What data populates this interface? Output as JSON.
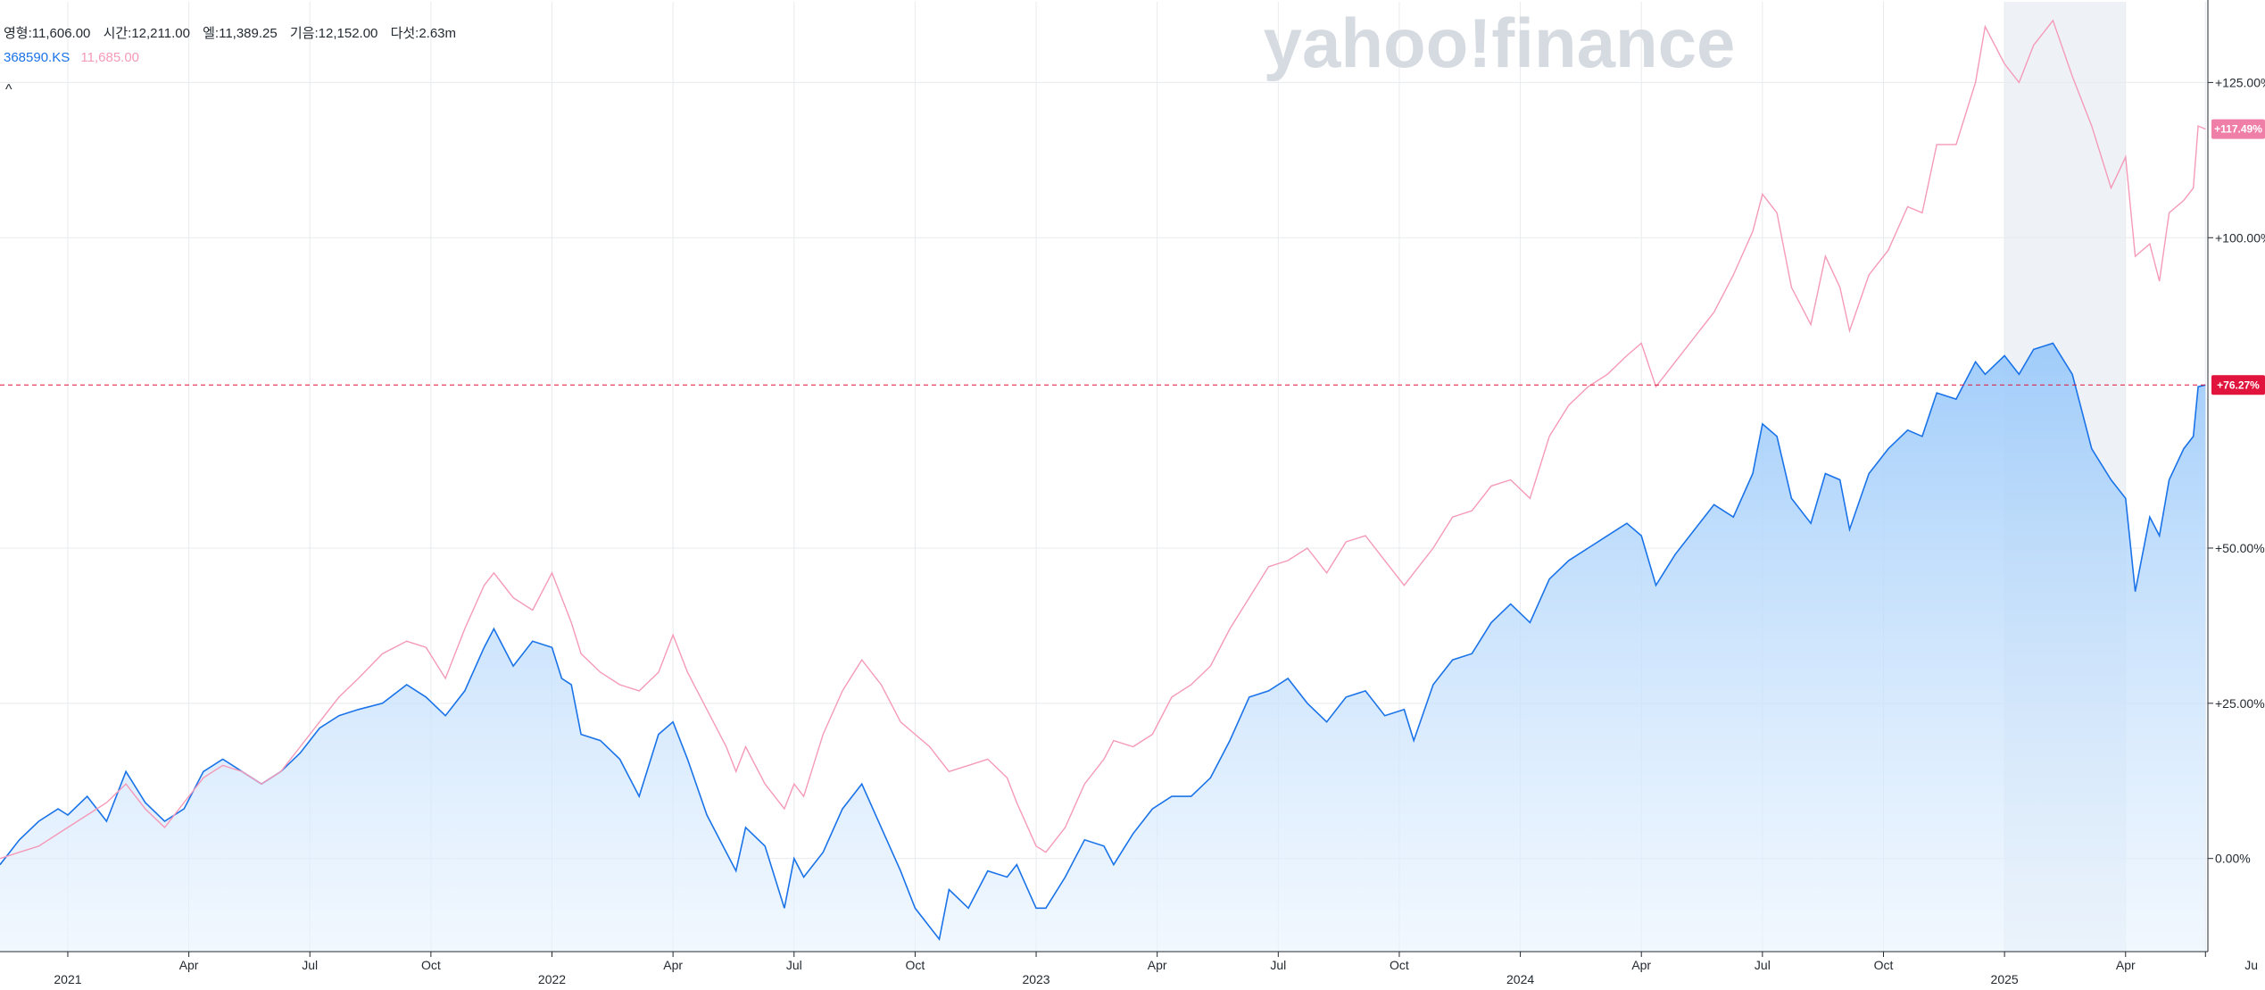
{
  "header": {
    "ohlc": {
      "open": "영형:11,606.00",
      "high": "시간:12,211.00",
      "low": "엘:11,389.25",
      "close": "기음:12,152.00",
      "volume": "다섯:2.63m"
    },
    "legend": {
      "primary_symbol": "368590.KS",
      "compare_value": "11,685.00"
    },
    "collapse_label": "^"
  },
  "watermark": "yahoo!finance",
  "colors": {
    "primary_line": "#1a73e8",
    "primary_fill": "#a8d1fb",
    "compare_line": "#f59ab8",
    "compare_badge": "#ef7fa6",
    "current_line": "#e0143c",
    "highlight_band": "#eef2f6",
    "grid": "#e8ebee"
  },
  "chart_data": {
    "type": "area",
    "x_labels": [
      "2021",
      "Apr",
      "Jul",
      "Oct",
      "2022",
      "Apr",
      "Jul",
      "Oct",
      "2023",
      "Apr",
      "Jul",
      "Oct",
      "2024",
      "Apr",
      "Jul",
      "Oct",
      "2025",
      "Apr",
      "Ju"
    ],
    "x_label_dates": [
      2021.0,
      2021.25,
      2021.5,
      2021.75,
      2022.0,
      2022.25,
      2022.5,
      2022.75,
      2023.0,
      2023.25,
      2023.5,
      2023.75,
      2024.0,
      2024.25,
      2024.5,
      2024.75,
      2025.0,
      2025.25,
      2025.415
    ],
    "y_ticks": [
      0,
      25,
      50,
      100,
      125
    ],
    "y_tick_labels": [
      "0.00%",
      "+25.00%",
      "+50.00%",
      "+100.00%",
      "+125.00%"
    ],
    "ylim": [
      -15,
      138
    ],
    "xlim": [
      2020.86,
      2025.42
    ],
    "highlight_range": [
      2025.0,
      2025.25
    ],
    "current_value": 76.27,
    "current_label": "+76.27%",
    "compare_last": 117.49,
    "compare_label": "+117.49%",
    "grid": true,
    "series": [
      {
        "name": "368590.KS",
        "style": "area",
        "points": [
          [
            2020.86,
            -1
          ],
          [
            2020.9,
            3
          ],
          [
            2020.94,
            6
          ],
          [
            2020.98,
            8
          ],
          [
            2021.0,
            7
          ],
          [
            2021.04,
            10
          ],
          [
            2021.08,
            6
          ],
          [
            2021.12,
            14
          ],
          [
            2021.16,
            9
          ],
          [
            2021.2,
            6
          ],
          [
            2021.24,
            8
          ],
          [
            2021.28,
            14
          ],
          [
            2021.32,
            16
          ],
          [
            2021.36,
            14
          ],
          [
            2021.4,
            12
          ],
          [
            2021.44,
            14
          ],
          [
            2021.48,
            17
          ],
          [
            2021.52,
            21
          ],
          [
            2021.56,
            23
          ],
          [
            2021.6,
            24
          ],
          [
            2021.65,
            25
          ],
          [
            2021.7,
            28
          ],
          [
            2021.74,
            26
          ],
          [
            2021.78,
            23
          ],
          [
            2021.82,
            27
          ],
          [
            2021.86,
            34
          ],
          [
            2021.88,
            37
          ],
          [
            2021.92,
            31
          ],
          [
            2021.96,
            35
          ],
          [
            2022.0,
            34
          ],
          [
            2022.02,
            29
          ],
          [
            2022.04,
            28
          ],
          [
            2022.06,
            20
          ],
          [
            2022.1,
            19
          ],
          [
            2022.14,
            16
          ],
          [
            2022.18,
            10
          ],
          [
            2022.22,
            20
          ],
          [
            2022.25,
            22
          ],
          [
            2022.28,
            16
          ],
          [
            2022.32,
            7
          ],
          [
            2022.36,
            1
          ],
          [
            2022.38,
            -2
          ],
          [
            2022.4,
            5
          ],
          [
            2022.44,
            2
          ],
          [
            2022.48,
            -8
          ],
          [
            2022.5,
            0
          ],
          [
            2022.52,
            -3
          ],
          [
            2022.56,
            1
          ],
          [
            2022.6,
            8
          ],
          [
            2022.64,
            12
          ],
          [
            2022.68,
            5
          ],
          [
            2022.72,
            -2
          ],
          [
            2022.75,
            -8
          ],
          [
            2022.78,
            -11
          ],
          [
            2022.8,
            -13
          ],
          [
            2022.82,
            -5
          ],
          [
            2022.86,
            -8
          ],
          [
            2022.9,
            -2
          ],
          [
            2022.94,
            -3
          ],
          [
            2022.96,
            -1
          ],
          [
            2023.0,
            -8
          ],
          [
            2023.02,
            -8
          ],
          [
            2023.06,
            -3
          ],
          [
            2023.1,
            3
          ],
          [
            2023.14,
            2
          ],
          [
            2023.16,
            -1
          ],
          [
            2023.2,
            4
          ],
          [
            2023.24,
            8
          ],
          [
            2023.28,
            10
          ],
          [
            2023.32,
            10
          ],
          [
            2023.36,
            13
          ],
          [
            2023.4,
            19
          ],
          [
            2023.44,
            26
          ],
          [
            2023.48,
            27
          ],
          [
            2023.52,
            29
          ],
          [
            2023.56,
            25
          ],
          [
            2023.6,
            22
          ],
          [
            2023.64,
            26
          ],
          [
            2023.68,
            27
          ],
          [
            2023.72,
            23
          ],
          [
            2023.76,
            24
          ],
          [
            2023.78,
            19
          ],
          [
            2023.82,
            28
          ],
          [
            2023.86,
            32
          ],
          [
            2023.9,
            33
          ],
          [
            2023.94,
            38
          ],
          [
            2023.98,
            41
          ],
          [
            2024.02,
            38
          ],
          [
            2024.06,
            45
          ],
          [
            2024.1,
            48
          ],
          [
            2024.14,
            50
          ],
          [
            2024.18,
            52
          ],
          [
            2024.22,
            54
          ],
          [
            2024.25,
            52
          ],
          [
            2024.28,
            44
          ],
          [
            2024.32,
            49
          ],
          [
            2024.36,
            53
          ],
          [
            2024.4,
            57
          ],
          [
            2024.44,
            55
          ],
          [
            2024.48,
            62
          ],
          [
            2024.5,
            70
          ],
          [
            2024.53,
            68
          ],
          [
            2024.56,
            58
          ],
          [
            2024.6,
            54
          ],
          [
            2024.63,
            62
          ],
          [
            2024.66,
            61
          ],
          [
            2024.68,
            53
          ],
          [
            2024.72,
            62
          ],
          [
            2024.76,
            66
          ],
          [
            2024.8,
            69
          ],
          [
            2024.83,
            68
          ],
          [
            2024.86,
            75
          ],
          [
            2024.9,
            74
          ],
          [
            2024.94,
            80
          ],
          [
            2024.96,
            78
          ],
          [
            2025.0,
            81
          ],
          [
            2025.03,
            78
          ],
          [
            2025.06,
            82
          ],
          [
            2025.1,
            83
          ],
          [
            2025.14,
            78
          ],
          [
            2025.18,
            66
          ],
          [
            2025.22,
            61
          ],
          [
            2025.25,
            58
          ],
          [
            2025.27,
            43
          ],
          [
            2025.3,
            55
          ],
          [
            2025.32,
            52
          ],
          [
            2025.34,
            61
          ],
          [
            2025.37,
            66
          ],
          [
            2025.39,
            68
          ],
          [
            2025.4,
            76
          ],
          [
            2025.415,
            76.27
          ]
        ]
      },
      {
        "name": "11,685.00",
        "style": "line",
        "points": [
          [
            2020.86,
            0
          ],
          [
            2020.9,
            1
          ],
          [
            2020.94,
            2
          ],
          [
            2020.98,
            4
          ],
          [
            2021.0,
            5
          ],
          [
            2021.04,
            7
          ],
          [
            2021.08,
            9
          ],
          [
            2021.12,
            12
          ],
          [
            2021.16,
            8
          ],
          [
            2021.2,
            5
          ],
          [
            2021.24,
            9
          ],
          [
            2021.28,
            13
          ],
          [
            2021.32,
            15
          ],
          [
            2021.36,
            14
          ],
          [
            2021.4,
            12
          ],
          [
            2021.44,
            14
          ],
          [
            2021.48,
            18
          ],
          [
            2021.52,
            22
          ],
          [
            2021.56,
            26
          ],
          [
            2021.6,
            29
          ],
          [
            2021.65,
            33
          ],
          [
            2021.7,
            35
          ],
          [
            2021.74,
            34
          ],
          [
            2021.78,
            29
          ],
          [
            2021.82,
            37
          ],
          [
            2021.86,
            44
          ],
          [
            2021.88,
            46
          ],
          [
            2021.92,
            42
          ],
          [
            2021.96,
            40
          ],
          [
            2022.0,
            46
          ],
          [
            2022.02,
            42
          ],
          [
            2022.04,
            38
          ],
          [
            2022.06,
            33
          ],
          [
            2022.1,
            30
          ],
          [
            2022.14,
            28
          ],
          [
            2022.18,
            27
          ],
          [
            2022.22,
            30
          ],
          [
            2022.25,
            36
          ],
          [
            2022.28,
            30
          ],
          [
            2022.32,
            24
          ],
          [
            2022.36,
            18
          ],
          [
            2022.38,
            14
          ],
          [
            2022.4,
            18
          ],
          [
            2022.44,
            12
          ],
          [
            2022.48,
            8
          ],
          [
            2022.5,
            12
          ],
          [
            2022.52,
            10
          ],
          [
            2022.56,
            20
          ],
          [
            2022.6,
            27
          ],
          [
            2022.64,
            32
          ],
          [
            2022.68,
            28
          ],
          [
            2022.72,
            22
          ],
          [
            2022.75,
            20
          ],
          [
            2022.78,
            18
          ],
          [
            2022.8,
            16
          ],
          [
            2022.82,
            14
          ],
          [
            2022.86,
            15
          ],
          [
            2022.9,
            16
          ],
          [
            2022.94,
            13
          ],
          [
            2022.96,
            9
          ],
          [
            2023.0,
            2
          ],
          [
            2023.02,
            1
          ],
          [
            2023.06,
            5
          ],
          [
            2023.1,
            12
          ],
          [
            2023.14,
            16
          ],
          [
            2023.16,
            19
          ],
          [
            2023.2,
            18
          ],
          [
            2023.24,
            20
          ],
          [
            2023.28,
            26
          ],
          [
            2023.32,
            28
          ],
          [
            2023.36,
            31
          ],
          [
            2023.4,
            37
          ],
          [
            2023.44,
            42
          ],
          [
            2023.48,
            47
          ],
          [
            2023.52,
            48
          ],
          [
            2023.56,
            50
          ],
          [
            2023.6,
            46
          ],
          [
            2023.64,
            51
          ],
          [
            2023.68,
            52
          ],
          [
            2023.72,
            48
          ],
          [
            2023.76,
            44
          ],
          [
            2023.78,
            46
          ],
          [
            2023.82,
            50
          ],
          [
            2023.86,
            55
          ],
          [
            2023.9,
            56
          ],
          [
            2023.94,
            60
          ],
          [
            2023.98,
            61
          ],
          [
            2024.02,
            58
          ],
          [
            2024.06,
            68
          ],
          [
            2024.1,
            73
          ],
          [
            2024.14,
            76
          ],
          [
            2024.18,
            78
          ],
          [
            2024.22,
            81
          ],
          [
            2024.25,
            83
          ],
          [
            2024.28,
            76
          ],
          [
            2024.32,
            80
          ],
          [
            2024.36,
            84
          ],
          [
            2024.4,
            88
          ],
          [
            2024.44,
            94
          ],
          [
            2024.48,
            101
          ],
          [
            2024.5,
            107
          ],
          [
            2024.53,
            104
          ],
          [
            2024.56,
            92
          ],
          [
            2024.6,
            86
          ],
          [
            2024.63,
            97
          ],
          [
            2024.66,
            92
          ],
          [
            2024.68,
            85
          ],
          [
            2024.72,
            94
          ],
          [
            2024.76,
            98
          ],
          [
            2024.8,
            105
          ],
          [
            2024.83,
            104
          ],
          [
            2024.86,
            115
          ],
          [
            2024.9,
            115
          ],
          [
            2024.94,
            125
          ],
          [
            2024.96,
            134
          ],
          [
            2025.0,
            128
          ],
          [
            2025.03,
            125
          ],
          [
            2025.06,
            131
          ],
          [
            2025.1,
            135
          ],
          [
            2025.14,
            126
          ],
          [
            2025.18,
            118
          ],
          [
            2025.22,
            108
          ],
          [
            2025.25,
            113
          ],
          [
            2025.27,
            97
          ],
          [
            2025.3,
            99
          ],
          [
            2025.32,
            93
          ],
          [
            2025.34,
            104
          ],
          [
            2025.37,
            106
          ],
          [
            2025.39,
            108
          ],
          [
            2025.4,
            118
          ],
          [
            2025.415,
            117.49
          ]
        ]
      }
    ]
  }
}
